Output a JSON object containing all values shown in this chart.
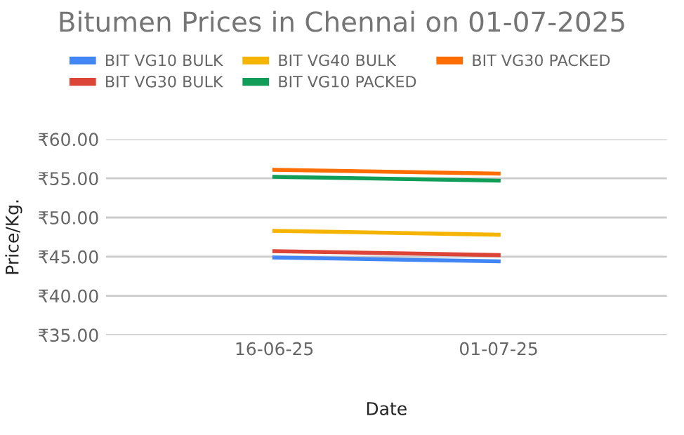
{
  "chart_data": {
    "type": "line",
    "title": "Bitumen Prices in Chennai on 01-07-2025",
    "xlabel": "Date",
    "ylabel": "Price/Kg.",
    "categories": [
      "16-06-25",
      "01-07-25"
    ],
    "series": [
      {
        "name": "BIT VG10 BULK",
        "color": "#4285f4",
        "values": [
          44.9,
          44.4
        ]
      },
      {
        "name": "BIT VG30 BULK",
        "color": "#db4437",
        "values": [
          45.7,
          45.2
        ]
      },
      {
        "name": "BIT VG40 BULK",
        "color": "#f4b400",
        "values": [
          48.3,
          47.8
        ]
      },
      {
        "name": "BIT VG10 PACKED",
        "color": "#0f9d58",
        "values": [
          55.2,
          54.7
        ]
      },
      {
        "name": "BIT VG30 PACKED",
        "color": "#ff6d01",
        "values": [
          56.1,
          55.6
        ]
      }
    ],
    "ylim": [
      35,
      60
    ],
    "yticks": [
      {
        "value": 35,
        "label": "₹35.00"
      },
      {
        "value": 40,
        "label": "₹40.00"
      },
      {
        "value": 45,
        "label": "₹45.00"
      },
      {
        "value": 50,
        "label": "₹50.00"
      },
      {
        "value": 55,
        "label": "₹55.00"
      },
      {
        "value": 60,
        "label": "₹60.00"
      }
    ],
    "grid": "y",
    "legend": "top",
    "marker": "none",
    "line_style": "solid"
  }
}
